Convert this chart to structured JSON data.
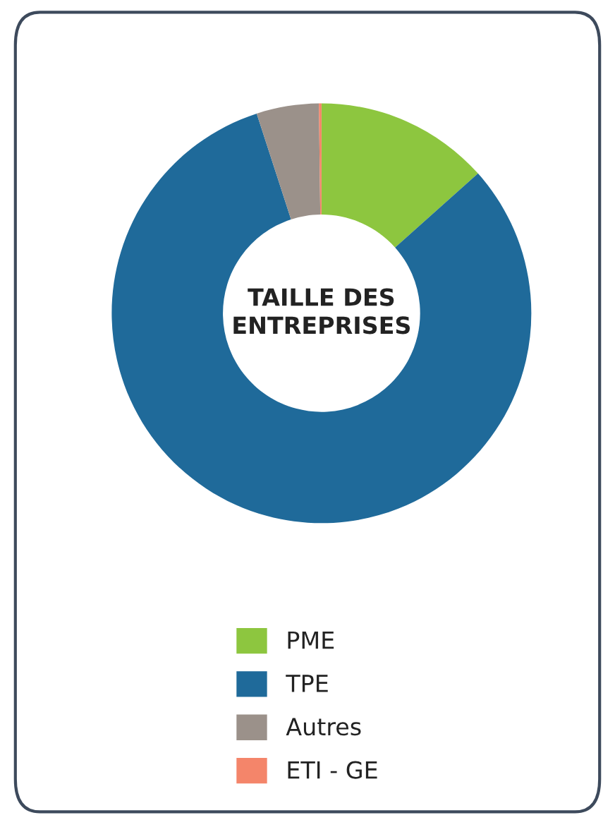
{
  "chart_data": {
    "type": "donut",
    "title": "TAILLE DES\nENTREPRISES",
    "categories": [
      "PME",
      "TPE",
      "Autres",
      "ETI - GE"
    ],
    "values": [
      13.4,
      81.6,
      4.8,
      0.2
    ],
    "colors": [
      "#8dc63f",
      "#1f6a9a",
      "#9b918a",
      "#f4856a"
    ],
    "legend": "bottom"
  }
}
